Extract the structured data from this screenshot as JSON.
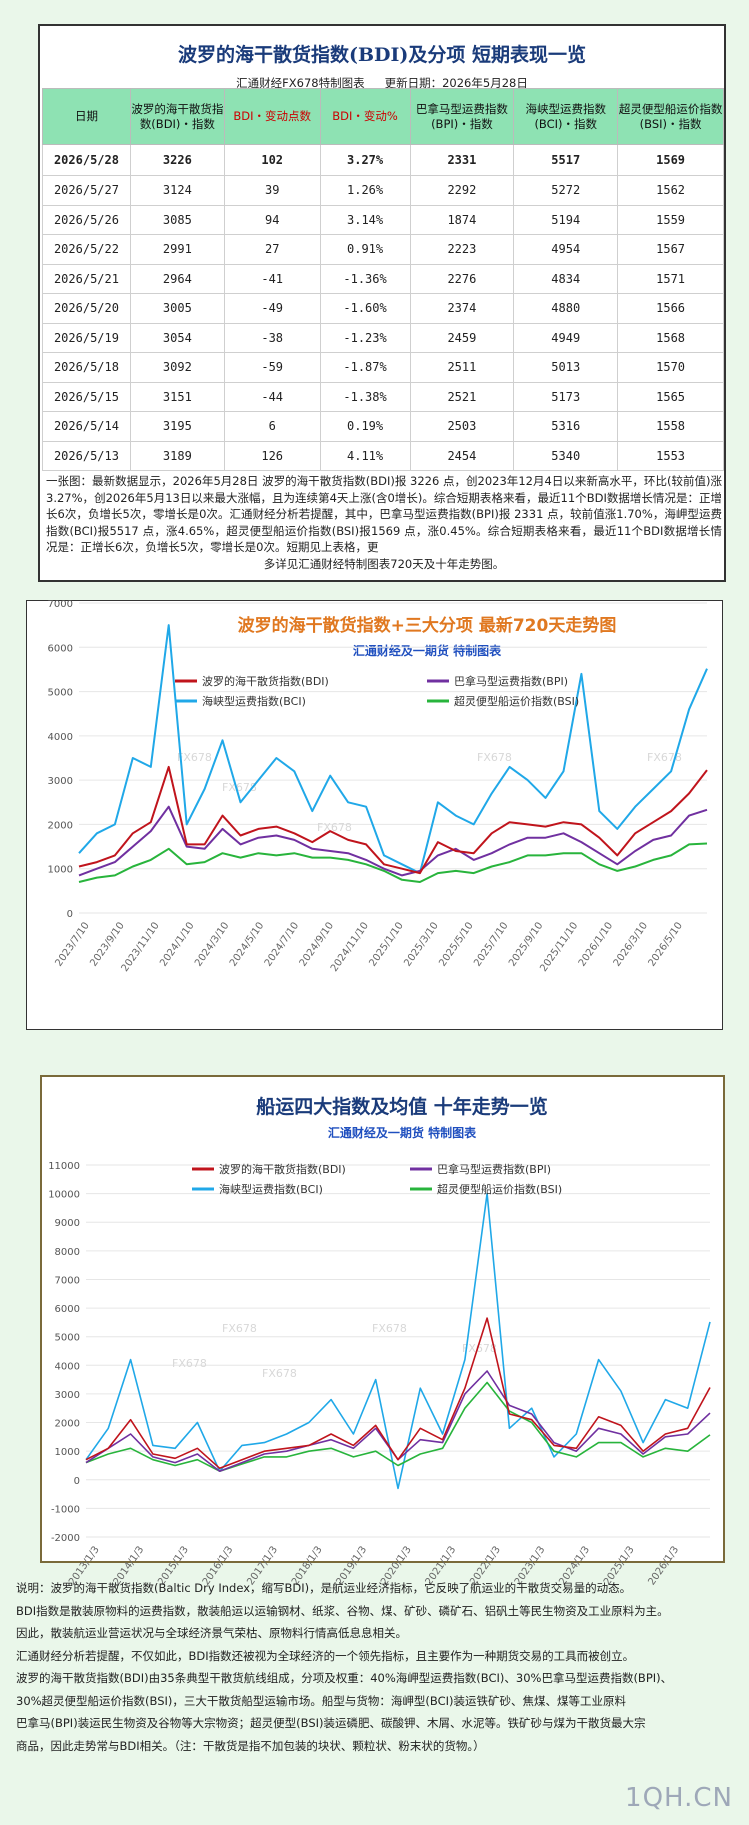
{
  "table_section": {
    "title": "波罗的海干散货指数(BDI)及分项  短期表现一览",
    "subtitle_left": "汇通财经FX678特制图表",
    "subtitle_right": "更新日期：2026年5月28日",
    "headers": [
      "日期",
      "波罗的海干散货指数(BDI)・指数",
      "BDI・变动点数",
      "BDI・变动%",
      "巴拿马型运费指数(BPI)・指数",
      "海峡型运费指数(BCI)・指数",
      "超灵便型船运价指数(BSI)・指数"
    ],
    "rows": [
      [
        "2026/5/28",
        "3226",
        "102",
        "3.27%",
        "2331",
        "5517",
        "1569"
      ],
      [
        "2026/5/27",
        "3124",
        "39",
        "1.26%",
        "2292",
        "5272",
        "1562"
      ],
      [
        "2026/5/26",
        "3085",
        "94",
        "3.14%",
        "1874",
        "5194",
        "1559"
      ],
      [
        "2026/5/22",
        "2991",
        "27",
        "0.91%",
        "2223",
        "4954",
        "1567"
      ],
      [
        "2026/5/21",
        "2964",
        "-41",
        "-1.36%",
        "2276",
        "4834",
        "1571"
      ],
      [
        "2026/5/20",
        "3005",
        "-49",
        "-1.60%",
        "2374",
        "4880",
        "1566"
      ],
      [
        "2026/5/19",
        "3054",
        "-38",
        "-1.23%",
        "2459",
        "4949",
        "1568"
      ],
      [
        "2026/5/18",
        "3092",
        "-59",
        "-1.87%",
        "2511",
        "5013",
        "1570"
      ],
      [
        "2026/5/15",
        "3151",
        "-44",
        "-1.38%",
        "2521",
        "5173",
        "1565"
      ],
      [
        "2026/5/14",
        "3195",
        "6",
        "0.19%",
        "2503",
        "5316",
        "1558"
      ],
      [
        "2026/5/13",
        "3189",
        "126",
        "4.11%",
        "2454",
        "5340",
        "1553"
      ]
    ],
    "note_main": "一张图：最新数据显示，2026年5月28日 波罗的海干散货指数(BDI)报 3226 点，创2023年12月4日以来新高水平，环比(较前值)涨3.27%，创2026年5月13日以来最大涨幅，且为连续第4天上涨(含0增长)。综合短期表格来看，最近11个BDI数据增长情况是：正增长6次，负增长5次，零增长是0次。汇通财经分析若提醒，其中，巴拿马型运费指数(BPI)报 2331 点，较前值涨1.70%，海岬型运费指数(BCI)报5517 点，涨4.65%，超灵便型船运价指数(BSI)报1569 点，涨0.45%。综合短期表格来看，最近11个BDI数据增长情况是：正增长6次，负增长5次，零增长是0次。短期见上表格，更",
    "note_end": "多详见汇通财经特制图表720天及十年走势图。"
  },
  "colors": {
    "bdi": "#c0141c",
    "bpi": "#7030a0",
    "bci": "#20a8e8",
    "bsi": "#28b43c",
    "header_bg": "#8ee2b3",
    "title_blue": "#1a3b7a",
    "title_orange": "#e07820"
  },
  "chart_data": [
    {
      "type": "line",
      "title": "波罗的海干散货指数+三大分项  最新720天走势图",
      "subtitle": "汇通财经及一期货  特制图表",
      "legend": [
        "波罗的海干散货指数(BDI)",
        "巴拿马型运费指数(BPI)",
        "海峡型运费指数(BCI)",
        "超灵便型船运价指数(BSI)"
      ],
      "watermark": "FX678",
      "yticks": [
        0,
        1000,
        2000,
        3000,
        4000,
        5000,
        6000,
        7000
      ],
      "ylim": [
        0,
        7000
      ],
      "xticks": [
        "2023/7/10",
        "2023/9/10",
        "2023/11/10",
        "2024/1/10",
        "2024/3/10",
        "2024/5/10",
        "2024/7/10",
        "2024/9/10",
        "2024/11/10",
        "2025/1/10",
        "2025/3/10",
        "2025/5/10",
        "2025/7/10",
        "2025/9/10",
        "2025/11/10",
        "2026/1/10",
        "2026/3/10",
        "2026/5/10"
      ],
      "x": [
        "2023/7/10",
        "2023/8/10",
        "2023/9/10",
        "2023/10/10",
        "2023/11/10",
        "2023/12/4",
        "2024/1/10",
        "2024/2/10",
        "2024/3/10",
        "2024/4/10",
        "2024/5/10",
        "2024/6/10",
        "2024/7/10",
        "2024/8/10",
        "2024/9/10",
        "2024/10/10",
        "2024/11/10",
        "2024/12/10",
        "2025/1/10",
        "2025/2/10",
        "2025/3/10",
        "2025/4/10",
        "2025/5/10",
        "2025/6/10",
        "2025/7/10",
        "2025/8/10",
        "2025/9/10",
        "2025/10/10",
        "2025/11/10",
        "2025/12/10",
        "2026/1/10",
        "2026/2/10",
        "2026/3/10",
        "2026/4/10",
        "2026/5/10",
        "2026/5/28"
      ],
      "series": [
        {
          "name": "波罗的海干散货指数(BDI)",
          "values": [
            1050,
            1150,
            1300,
            1800,
            2050,
            3300,
            1550,
            1550,
            2200,
            1750,
            1900,
            1950,
            1800,
            1600,
            1850,
            1650,
            1550,
            1100,
            1000,
            900,
            1600,
            1400,
            1350,
            1800,
            2050,
            2000,
            1950,
            2050,
            2000,
            1700,
            1300,
            1800,
            2050,
            2300,
            2700,
            3226
          ]
        },
        {
          "name": "巴拿马型运费指数(BPI)",
          "values": [
            850,
            1000,
            1150,
            1500,
            1850,
            2400,
            1500,
            1450,
            1900,
            1550,
            1700,
            1750,
            1650,
            1450,
            1400,
            1350,
            1200,
            1000,
            850,
            950,
            1300,
            1450,
            1200,
            1350,
            1550,
            1700,
            1700,
            1800,
            1600,
            1350,
            1100,
            1400,
            1650,
            1750,
            2200,
            2331
          ]
        },
        {
          "name": "海峡型运费指数(BCI)",
          "values": [
            1350,
            1800,
            2000,
            3500,
            3300,
            6500,
            2000,
            2800,
            3900,
            2500,
            3000,
            3500,
            3200,
            2300,
            3100,
            2500,
            2400,
            1300,
            1100,
            900,
            2500,
            2200,
            2000,
            2700,
            3300,
            3000,
            2600,
            3200,
            5400,
            2300,
            1900,
            2400,
            2800,
            3200,
            4600,
            5517
          ]
        },
        {
          "name": "超灵便型船运价指数(BSI)",
          "values": [
            700,
            800,
            850,
            1050,
            1200,
            1450,
            1100,
            1150,
            1350,
            1250,
            1350,
            1300,
            1350,
            1250,
            1250,
            1200,
            1100,
            950,
            750,
            700,
            900,
            950,
            900,
            1050,
            1150,
            1300,
            1300,
            1350,
            1350,
            1100,
            950,
            1050,
            1200,
            1300,
            1550,
            1569
          ]
        }
      ]
    },
    {
      "type": "line",
      "title": "船运四大指数及均值 十年走势一览",
      "subtitle": "汇通财经及一期货 特制图表",
      "legend": [
        "波罗的海干散货指数(BDI)",
        "巴拿马型运费指数(BPI)",
        "海峡型运费指数(BCI)",
        "超灵便型船运价指数(BSI)"
      ],
      "watermark": "FX678",
      "yticks": [
        -2000,
        -1000,
        0,
        1000,
        2000,
        3000,
        4000,
        5000,
        6000,
        7000,
        8000,
        9000,
        10000,
        11000
      ],
      "ylim": [
        -2000,
        11000
      ],
      "xticks": [
        "2013/1/3",
        "2014/1/3",
        "2015/1/3",
        "2016/1/3",
        "2017/1/3",
        "2018/1/3",
        "2019/1/3",
        "2020/1/3",
        "2021/1/3",
        "2022/1/3",
        "2023/1/3",
        "2024/1/3",
        "2025/1/3",
        "2026/1/3"
      ],
      "x": [
        "2013/1/3",
        "2013/7/3",
        "2014/1/3",
        "2014/7/3",
        "2015/1/3",
        "2015/7/3",
        "2016/1/3",
        "2016/7/3",
        "2017/1/3",
        "2017/7/3",
        "2018/1/3",
        "2018/7/3",
        "2019/1/3",
        "2019/7/3",
        "2020/1/3",
        "2020/7/3",
        "2021/1/3",
        "2021/7/3",
        "2021/10/7",
        "2022/1/3",
        "2022/7/3",
        "2023/1/3",
        "2023/7/3",
        "2024/1/3",
        "2024/7/3",
        "2025/1/3",
        "2025/7/3",
        "2026/1/3",
        "2026/5/28"
      ],
      "series": [
        {
          "name": "波罗的海干散货指数(BDI)",
          "values": [
            700,
            1100,
            2100,
            900,
            750,
            1100,
            400,
            700,
            1000,
            1100,
            1200,
            1600,
            1200,
            1900,
            700,
            1800,
            1400,
            3200,
            5650,
            2300,
            2100,
            1200,
            1100,
            2200,
            1900,
            1000,
            1600,
            1800,
            3226
          ]
        },
        {
          "name": "巴拿马型运费指数(BPI)",
          "values": [
            600,
            1100,
            1600,
            800,
            600,
            900,
            300,
            600,
            900,
            1000,
            1200,
            1400,
            1100,
            1800,
            700,
            1400,
            1300,
            3000,
            3800,
            2600,
            2300,
            1300,
            1000,
            1800,
            1600,
            900,
            1500,
            1600,
            2331
          ]
        },
        {
          "name": "海峡型运费指数(BCI)",
          "values": [
            700,
            1800,
            4200,
            1200,
            1100,
            2000,
            300,
            1200,
            1300,
            1600,
            2000,
            2800,
            1600,
            3500,
            -300,
            3200,
            1600,
            4200,
            10000,
            1800,
            2500,
            800,
            1600,
            4200,
            3100,
            1300,
            2800,
            2500,
            5517
          ]
        },
        {
          "name": "超灵便型船运价指数(BSI)",
          "values": [
            600,
            900,
            1100,
            700,
            500,
            700,
            300,
            550,
            800,
            800,
            1000,
            1100,
            800,
            1000,
            500,
            900,
            1100,
            2500,
            3400,
            2400,
            2000,
            1000,
            800,
            1300,
            1300,
            800,
            1100,
            1000,
            1569
          ]
        }
      ]
    }
  ],
  "bottom_notes": [
    "说明：波罗的海干散货指数(Baltic Dry Index，缩写BDI)，是航运业经济指标，它反映了航运业的干散货交易量的动态。",
    "BDI指数是散装原物料的运费指数，散装船运以运输钢材、纸浆、谷物、煤、矿砂、磷矿石、铝矾土等民生物资及工业原料为主。",
    "因此，散装航运业营运状况与全球经济景气荣枯、原物料行情高低息息相关。",
    "汇通财经分析若提醒，不仅如此，BDI指数还被视为全球经济的一个领先指标，且主要作为一种期货交易的工具而被创立。",
    "波罗的海干散货指数(BDI)由35条典型干散货航线组成，分项及权重：40%海岬型运费指数(BCI)、30%巴拿马型运费指数(BPI)、",
    "30%超灵便型船运价指数(BSI)，三大干散货船型运输市场。船型与货物：海岬型(BCI)装运铁矿砂、焦煤、煤等工业原料",
    "巴拿马(BPI)装运民生物资及谷物等大宗物资；超灵便型(BSI)装运磷肥、碳酸钾、木屑、水泥等。铁矿砂与煤为干散货最大宗",
    "商品，因此走势常与BDI相关。（注：干散货是指不加包装的块状、颗粒状、粉末状的货物。）"
  ],
  "logo": "1QH.CN"
}
